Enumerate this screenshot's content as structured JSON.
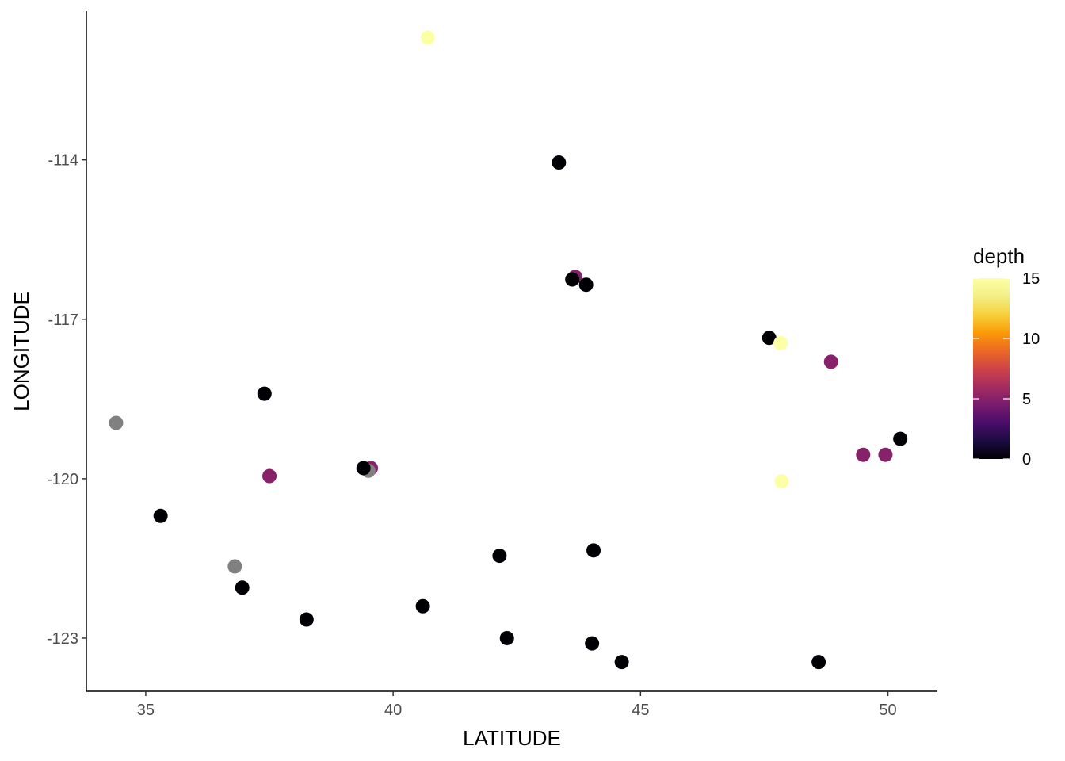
{
  "chart_data": {
    "type": "scatter",
    "xlabel": "LATITUDE",
    "ylabel": "LONGITUDE",
    "xlim": [
      33.8,
      51.0
    ],
    "ylim": [
      -124.0,
      -111.2
    ],
    "x_ticks": [
      35,
      40,
      45,
      50
    ],
    "y_ticks": [
      -114,
      -117,
      -120,
      -123
    ],
    "x_tick_labels": [
      "35",
      "40",
      "45",
      "50"
    ],
    "y_tick_labels": [
      "-114",
      "-117",
      "-120",
      "-123"
    ],
    "grid": false,
    "legend": {
      "title": "depth",
      "placement": "right",
      "type": "colorbar",
      "min": 0,
      "max": 15,
      "ticks": [
        0,
        5,
        10,
        15
      ],
      "tick_labels": [
        "0",
        "5",
        "10",
        "15"
      ],
      "colormap": "inferno",
      "na_color": "#808080"
    },
    "points": [
      {
        "x": 40.7,
        "y": -111.7,
        "depth": 15
      },
      {
        "x": 43.35,
        "y": -114.05,
        "depth": 0
      },
      {
        "x": 43.68,
        "y": -116.2,
        "depth": 5
      },
      {
        "x": 43.62,
        "y": -116.25,
        "depth": 0
      },
      {
        "x": 43.9,
        "y": -116.35,
        "depth": 0
      },
      {
        "x": 47.6,
        "y": -117.35,
        "depth": 0
      },
      {
        "x": 47.83,
        "y": -117.45,
        "depth": 15
      },
      {
        "x": 48.85,
        "y": -117.8,
        "depth": 5
      },
      {
        "x": 37.4,
        "y": -118.4,
        "depth": 0
      },
      {
        "x": 34.4,
        "y": -118.95,
        "depth": null
      },
      {
        "x": 50.25,
        "y": -119.25,
        "depth": 0
      },
      {
        "x": 49.5,
        "y": -119.55,
        "depth": 5
      },
      {
        "x": 49.95,
        "y": -119.55,
        "depth": 5
      },
      {
        "x": 39.55,
        "y": -119.8,
        "depth": 5
      },
      {
        "x": 39.5,
        "y": -119.85,
        "depth": null
      },
      {
        "x": 39.4,
        "y": -119.8,
        "depth": 0
      },
      {
        "x": 37.5,
        "y": -119.95,
        "depth": 5
      },
      {
        "x": 47.85,
        "y": -120.05,
        "depth": 15
      },
      {
        "x": 35.3,
        "y": -120.7,
        "depth": 0
      },
      {
        "x": 44.05,
        "y": -121.35,
        "depth": 0
      },
      {
        "x": 42.15,
        "y": -121.45,
        "depth": 0
      },
      {
        "x": 36.8,
        "y": -121.65,
        "depth": null
      },
      {
        "x": 36.95,
        "y": -122.05,
        "depth": 0
      },
      {
        "x": 40.6,
        "y": -122.4,
        "depth": 0
      },
      {
        "x": 38.25,
        "y": -122.65,
        "depth": 0
      },
      {
        "x": 42.3,
        "y": -123.0,
        "depth": 0
      },
      {
        "x": 44.02,
        "y": -123.1,
        "depth": 0
      },
      {
        "x": 44.62,
        "y": -123.45,
        "depth": 0
      },
      {
        "x": 48.6,
        "y": -123.45,
        "depth": 0
      }
    ]
  }
}
